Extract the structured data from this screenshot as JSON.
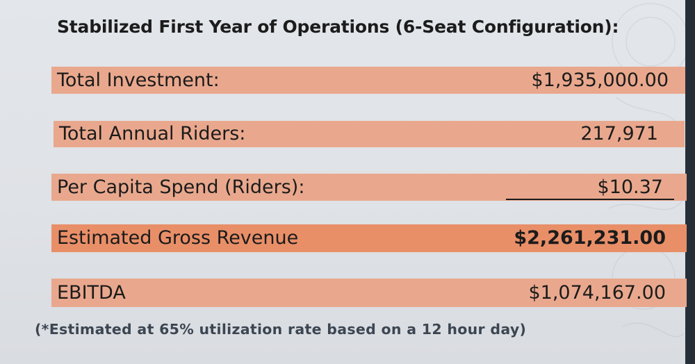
{
  "title": "Stabilized First Year of Operations (6-Seat Configuration):",
  "rows": [
    {
      "label": "Total Investment:",
      "value": "$1,935,000.00"
    },
    {
      "label": "Total Annual Riders:",
      "value": "217,971"
    },
    {
      "label": "Per Capita Spend (Riders):",
      "value": "$10.37"
    },
    {
      "label": "Estimated Gross Revenue",
      "value": "$2,261,231.00"
    },
    {
      "label": "EBITDA",
      "value": "$1,074,167.00"
    }
  ],
  "footnote": "(*Estimated at 65% utilization rate based on a 12 hour day)",
  "colors": {
    "row_fill": "#e9a88d",
    "highlight_fill": "#e98f68",
    "background": "#e3e6ea",
    "footnote_text": "#3c4652"
  }
}
